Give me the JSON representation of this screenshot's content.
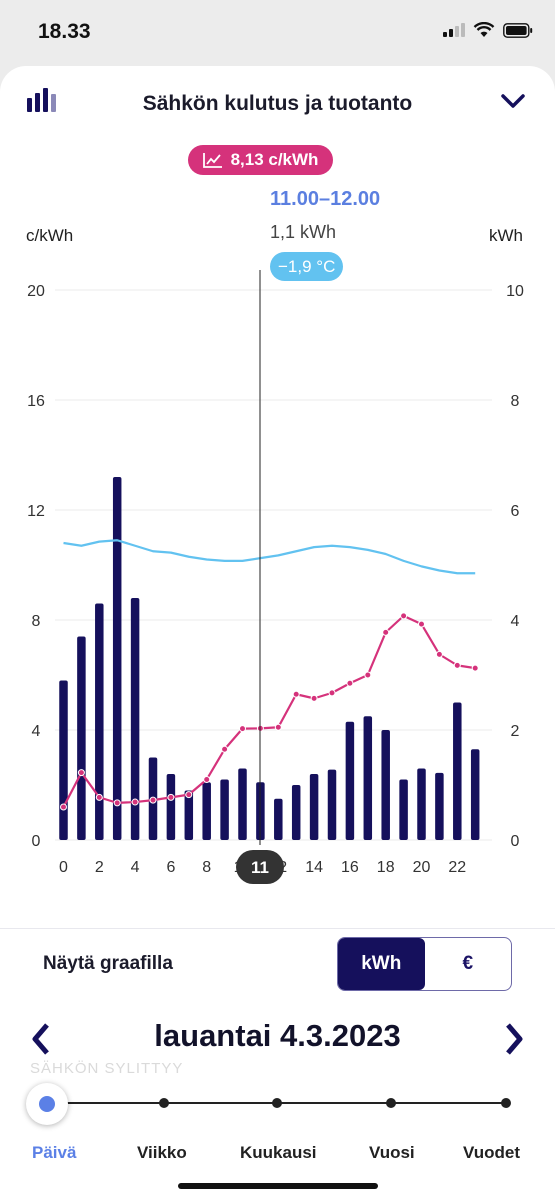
{
  "status": {
    "time": "18.33"
  },
  "header": {
    "title": "Sähkön kulutus ja tuotanto"
  },
  "tooltip": {
    "price": "8,13 c/kWh",
    "hour_range": "11.00–12.00",
    "kwh": "1,1 kWh",
    "temperature": "−1,9 °C"
  },
  "axes": {
    "left_unit": "c/kWh",
    "right_unit": "kWh",
    "selected_hour": "11"
  },
  "chart_data": {
    "type": "bar",
    "x": [
      0,
      1,
      2,
      3,
      4,
      5,
      6,
      7,
      8,
      9,
      10,
      11,
      12,
      13,
      14,
      15,
      16,
      17,
      18,
      19,
      20,
      21,
      22,
      23
    ],
    "x_ticks": [
      "0",
      "2",
      "4",
      "6",
      "8",
      "10",
      "12",
      "14",
      "16",
      "18",
      "20",
      "22"
    ],
    "series": [
      {
        "values": [
          2.9,
          3.7,
          4.3,
          6.6,
          4.4,
          1.5,
          1.2,
          0.9,
          1.05,
          1.1,
          1.3,
          1.05,
          0.75,
          1.0,
          1.2,
          1.28,
          2.15,
          2.25,
          2.0,
          1.1,
          1.3,
          1.22,
          2.5,
          1.65
        ]
      },
      {
        "values": [
          1.2,
          2.45,
          1.55,
          1.35,
          1.38,
          1.45,
          1.55,
          1.65,
          2.2,
          3.3,
          4.05,
          4.06,
          4.1,
          5.3,
          5.15,
          5.35,
          5.7,
          6.0,
          7.55,
          8.15,
          7.85,
          6.75,
          6.35,
          6.25
        ]
      },
      {
        "values": [
          10.8,
          10.7,
          10.85,
          10.9,
          10.7,
          10.5,
          10.45,
          10.3,
          10.2,
          10.15,
          10.15,
          10.25,
          10.35,
          10.5,
          10.65,
          10.7,
          10.65,
          10.55,
          10.4,
          10.15,
          9.95,
          9.8,
          9.7,
          9.7
        ]
      }
    ],
    "left_axis": {
      "ticks": [
        "0",
        "4",
        "8",
        "12",
        "16",
        "20"
      ],
      "ylim": [
        0,
        20
      ]
    },
    "right_axis": {
      "ticks": [
        "0",
        "2",
        "4",
        "6",
        "8",
        "10"
      ],
      "ylim": [
        0,
        10
      ]
    },
    "colors": {
      "bars": "#15105c",
      "price": "#d5327b",
      "temperature": "#62c2f0"
    },
    "grid": true
  },
  "display": {
    "label": "Näytä graafilla",
    "options": [
      "kWh",
      "€"
    ],
    "selected": "kWh"
  },
  "date_nav": {
    "date": "lauantai 4.3.2023",
    "faded_text": "SÄHKÖN SYLITTYY"
  },
  "periods": [
    "Päivä",
    "Viikko",
    "Kuukausi",
    "Vuosi",
    "Vuodet"
  ],
  "selected_period": "Päivä"
}
